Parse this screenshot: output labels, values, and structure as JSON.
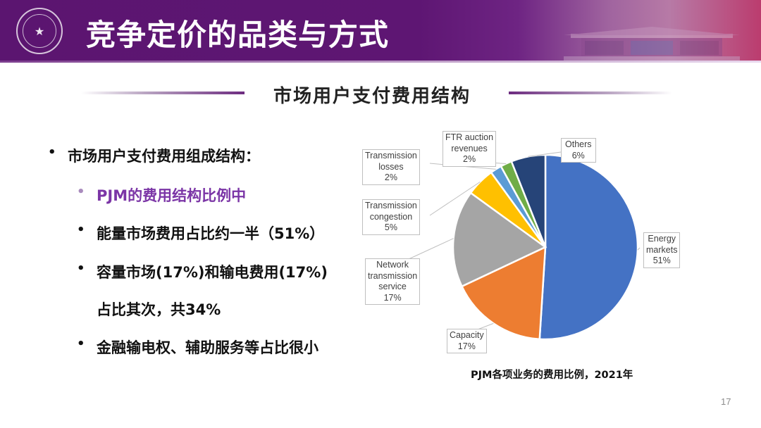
{
  "header": {
    "title": "竞争定价的品类与方式",
    "logo": "university-seal-icon",
    "gradient_colors": [
      "#5b1570",
      "#a0649f",
      "#bb3c6e"
    ]
  },
  "section": {
    "subtitle": "市场用户支付费用结构"
  },
  "bullets": [
    {
      "level": 1,
      "text": "市场用户支付费用组成结构：",
      "color": "#111111"
    },
    {
      "level": 2,
      "text": "PJM的费用结构比例中",
      "color": "#7b35a6"
    },
    {
      "level": 2,
      "text": "能量市场费用占比约一半（51%）",
      "color": "#111111"
    },
    {
      "level": 2,
      "text": "容量市场(17%)和输电费用(17%)",
      "color": "#111111"
    },
    {
      "level": 2,
      "text": "占比其次，共34%",
      "color": "#111111",
      "continuation": true
    },
    {
      "level": 2,
      "text": "金融输电权、辅助服务等占比很小",
      "color": "#111111"
    }
  ],
  "chart_data": {
    "type": "pie",
    "title": "PJM各项业务的费用比例，2021年",
    "start_angle": "12 o'clock, clockwise",
    "legend": "none (data labels with callouts)",
    "categories": [
      "Energy markets",
      "Capacity",
      "Network transmission service",
      "Transmission congestion",
      "Transmission losses",
      "FTR auction revenues",
      "Others"
    ],
    "values": [
      51,
      17,
      17,
      5,
      2,
      2,
      6
    ],
    "labels": [
      {
        "name": "Energy markets",
        "lines": [
          "Energy",
          "markets",
          "51%"
        ]
      },
      {
        "name": "Capacity",
        "lines": [
          "Capacity",
          "17%"
        ]
      },
      {
        "name": "Network transmission service",
        "lines": [
          "Network",
          "transmission",
          "service",
          "17%"
        ]
      },
      {
        "name": "Transmission congestion",
        "lines": [
          "Transmission",
          "congestion",
          "5%"
        ]
      },
      {
        "name": "Transmission losses",
        "lines": [
          "Transmission",
          "losses",
          "2%"
        ]
      },
      {
        "name": "FTR auction revenues",
        "lines": [
          "FTR auction",
          "revenues",
          "2%"
        ]
      },
      {
        "name": "Others",
        "lines": [
          "Others",
          "6%"
        ]
      }
    ],
    "colors": [
      "#4472c4",
      "#ed7d31",
      "#a5a5a5",
      "#ffc000",
      "#5b9bd5",
      "#70ad47",
      "#264478"
    ],
    "unit": "%"
  },
  "footer": {
    "page_number": "17"
  }
}
